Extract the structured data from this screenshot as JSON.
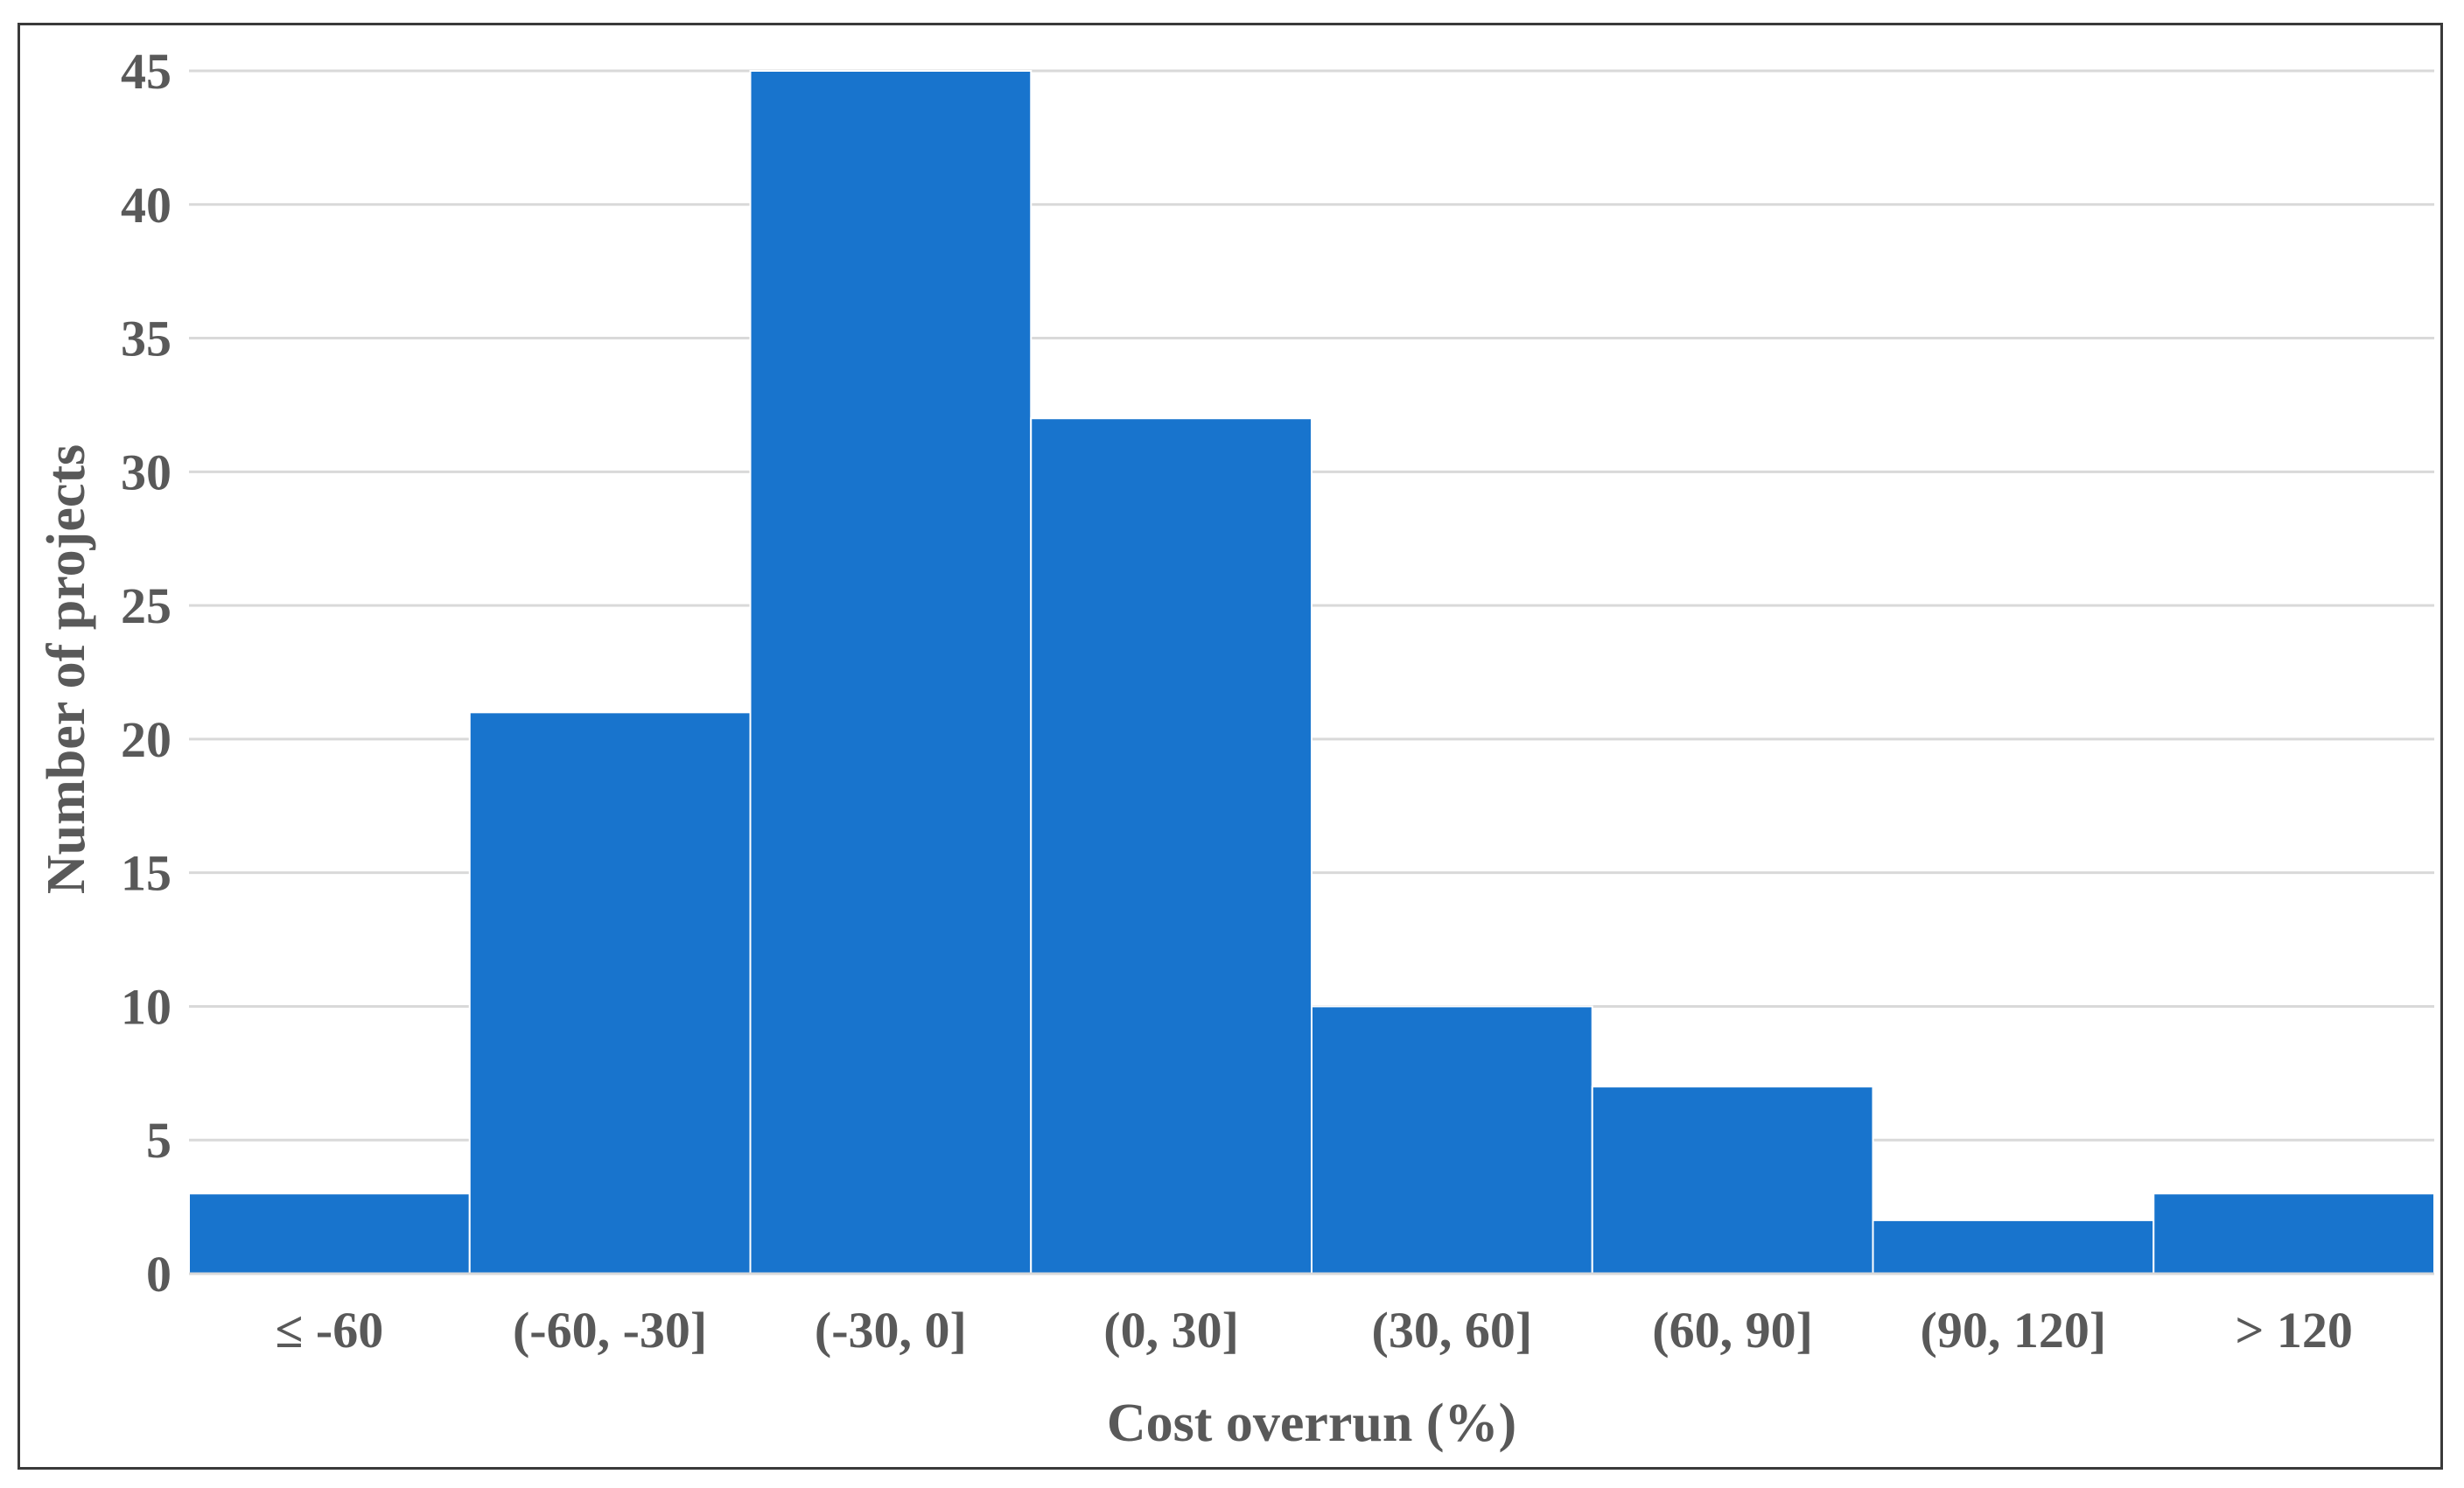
{
  "chart_data": {
    "type": "bar",
    "title": "",
    "xlabel": "Cost overrun (%)",
    "ylabel": "Number of projects",
    "categories": [
      "≤ -60",
      "(-60, -30]",
      "(-30, 0]",
      "(0, 30]",
      "(30, 60]",
      "(60, 90]",
      "(90, 120]",
      "> 120"
    ],
    "values": [
      3,
      21,
      45,
      32,
      10,
      7,
      2,
      3
    ],
    "ylim": [
      0,
      45
    ],
    "yticks": [
      0,
      5,
      10,
      15,
      20,
      25,
      30,
      35,
      40,
      45
    ],
    "grid": true,
    "bar_color": "#1874CD",
    "gridline_color": "#D9D9D9",
    "text_color": "#595959",
    "legend": "none"
  }
}
